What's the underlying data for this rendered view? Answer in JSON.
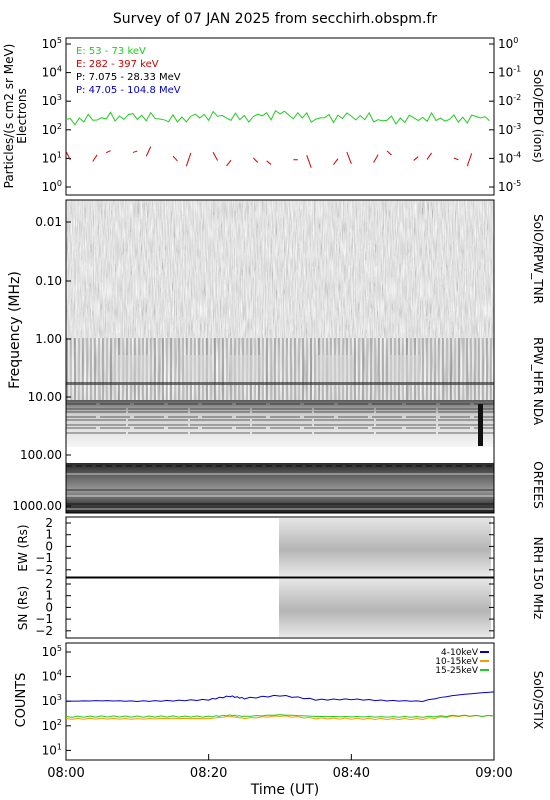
{
  "title": "Survey of 07 JAN 2025 from secchirh.obspm.fr",
  "xaxis": {
    "label": "Time (UT)",
    "ticks": [
      "08:00",
      "08:20",
      "08:40",
      "09:00"
    ]
  },
  "panels": {
    "epd": {
      "ylabel_line1": "Particles/(s cm2 sr MeV)",
      "ylabel_line2": "Electrons",
      "right_label": "SolO/EPD (ions)",
      "left_ticks": [
        {
          "base": "10",
          "exp": "5"
        },
        {
          "base": "10",
          "exp": "4"
        },
        {
          "base": "10",
          "exp": "3"
        },
        {
          "base": "10",
          "exp": "2"
        },
        {
          "base": "10",
          "exp": "1"
        },
        {
          "base": "10",
          "exp": "0"
        }
      ],
      "right_ticks": [
        {
          "base": "10",
          "exp": "0"
        },
        {
          "base": "10",
          "exp": "-1"
        },
        {
          "base": "10",
          "exp": "-2"
        },
        {
          "base": "10",
          "exp": "-3"
        },
        {
          "base": "10",
          "exp": "-4"
        },
        {
          "base": "10",
          "exp": "-5"
        }
      ],
      "legend": [
        {
          "text": "E: 53 - 73 keV",
          "color": "#22cc22"
        },
        {
          "text": "E: 282 - 397 keV",
          "color": "#cc0000"
        },
        {
          "text": "P: 7.075 - 28.33 MeV",
          "color": "#000000"
        },
        {
          "text": "P: 47.05 - 104.8 MeV",
          "color": "#0000cc"
        }
      ]
    },
    "spectrogram": {
      "ylabel": "Frequency (MHz)",
      "ticks": [
        "0.01",
        "0.10",
        "1.00",
        "10.00",
        "100.00",
        "1000.00"
      ],
      "right_labels": [
        "SolO/RPW_TNR",
        "RPW_HFR",
        "NDA",
        "ORFEES"
      ]
    },
    "nrh_ew": {
      "ylabel": "EW (Rs)",
      "ticks": [
        "2",
        "1",
        "0",
        "−1",
        "−2"
      ]
    },
    "nrh_sn": {
      "ylabel": "SN (Rs)",
      "ticks": [
        "2",
        "1",
        "0",
        "−1",
        "−2"
      ]
    },
    "nrh_right_label": "NRH 150 MHz",
    "stix": {
      "ylabel": "COUNTS",
      "right_label": "SolO/STIX",
      "ticks": [
        {
          "base": "10",
          "exp": "5"
        },
        {
          "base": "10",
          "exp": "4"
        },
        {
          "base": "10",
          "exp": "3"
        },
        {
          "base": "10",
          "exp": "2"
        },
        {
          "base": "10",
          "exp": "1"
        }
      ],
      "legend": [
        {
          "text": "4-10keV",
          "color": "#0000cc"
        },
        {
          "text": "10-15keV",
          "color": "#ff9900"
        },
        {
          "text": "15-25keV",
          "color": "#22cc22"
        }
      ]
    }
  },
  "chart_data": [
    {
      "type": "line",
      "panel": "SolO/EPD",
      "yscale": "log",
      "ylim": [
        0.5,
        100000
      ],
      "xlim": [
        "08:00",
        "09:00"
      ],
      "x_minutes_from_0800": [
        0,
        5,
        10,
        15,
        20,
        25,
        30,
        35,
        40,
        45,
        50,
        55,
        60
      ],
      "series": [
        {
          "name": "E: 53 - 73 keV",
          "color": "#22cc22",
          "values": [
            200,
            260,
            300,
            220,
            320,
            250,
            380,
            240,
            300,
            210,
            260,
            230,
            300
          ]
        },
        {
          "name": "E: 282 - 397 keV",
          "color": "#cc0000",
          "values": [
            10,
            12,
            18,
            9,
            11,
            7,
            10,
            8,
            9,
            12,
            10,
            9,
            9
          ]
        }
      ]
    },
    {
      "type": "heatmap",
      "panel": "Radio spectrogram",
      "yscale": "log",
      "ylim_MHz": [
        0.005,
        2000
      ],
      "xlim": [
        "08:00",
        "09:00"
      ],
      "instruments": [
        {
          "name": "SolO/RPW_TNR",
          "freq_MHz": [
            0.005,
            0.7
          ]
        },
        {
          "name": "RPW_HFR",
          "freq_MHz": [
            0.7,
            20
          ]
        },
        {
          "name": "NDA",
          "freq_MHz": [
            20,
            80
          ]
        },
        {
          "name": "ORFEES",
          "freq_MHz": [
            130,
            1000
          ]
        }
      ],
      "colormap": "grayscale"
    },
    {
      "type": "heatmap",
      "panel": "NRH 150 MHz EW",
      "ylim_Rs": [
        -2.5,
        2.5
      ],
      "data_start": "08:30",
      "data_end": "09:00"
    },
    {
      "type": "heatmap",
      "panel": "NRH 150 MHz SN",
      "ylim_Rs": [
        -2.5,
        2.5
      ],
      "data_start": "08:30",
      "data_end": "09:00"
    },
    {
      "type": "line",
      "panel": "SolO/STIX",
      "yscale": "log",
      "ylim": [
        7,
        100000
      ],
      "xlim": [
        "08:00",
        "09:00"
      ],
      "x_minutes_from_0800": [
        0,
        5,
        10,
        15,
        20,
        23,
        25,
        30,
        35,
        40,
        45,
        50,
        55,
        60
      ],
      "series": [
        {
          "name": "4-10keV",
          "color": "#0000cc",
          "values": [
            1000,
            1050,
            1000,
            1050,
            1150,
            1600,
            1300,
            1700,
            1150,
            1200,
            1050,
            1000,
            1800,
            2400
          ]
        },
        {
          "name": "10-15keV",
          "color": "#ff9900",
          "values": [
            190,
            195,
            190,
            200,
            195,
            240,
            200,
            250,
            200,
            195,
            190,
            190,
            250,
            250
          ]
        },
        {
          "name": "15-25keV",
          "color": "#22cc22",
          "values": [
            230,
            240,
            235,
            240,
            235,
            270,
            240,
            280,
            240,
            235,
            230,
            230,
            260,
            250
          ]
        }
      ]
    }
  ]
}
